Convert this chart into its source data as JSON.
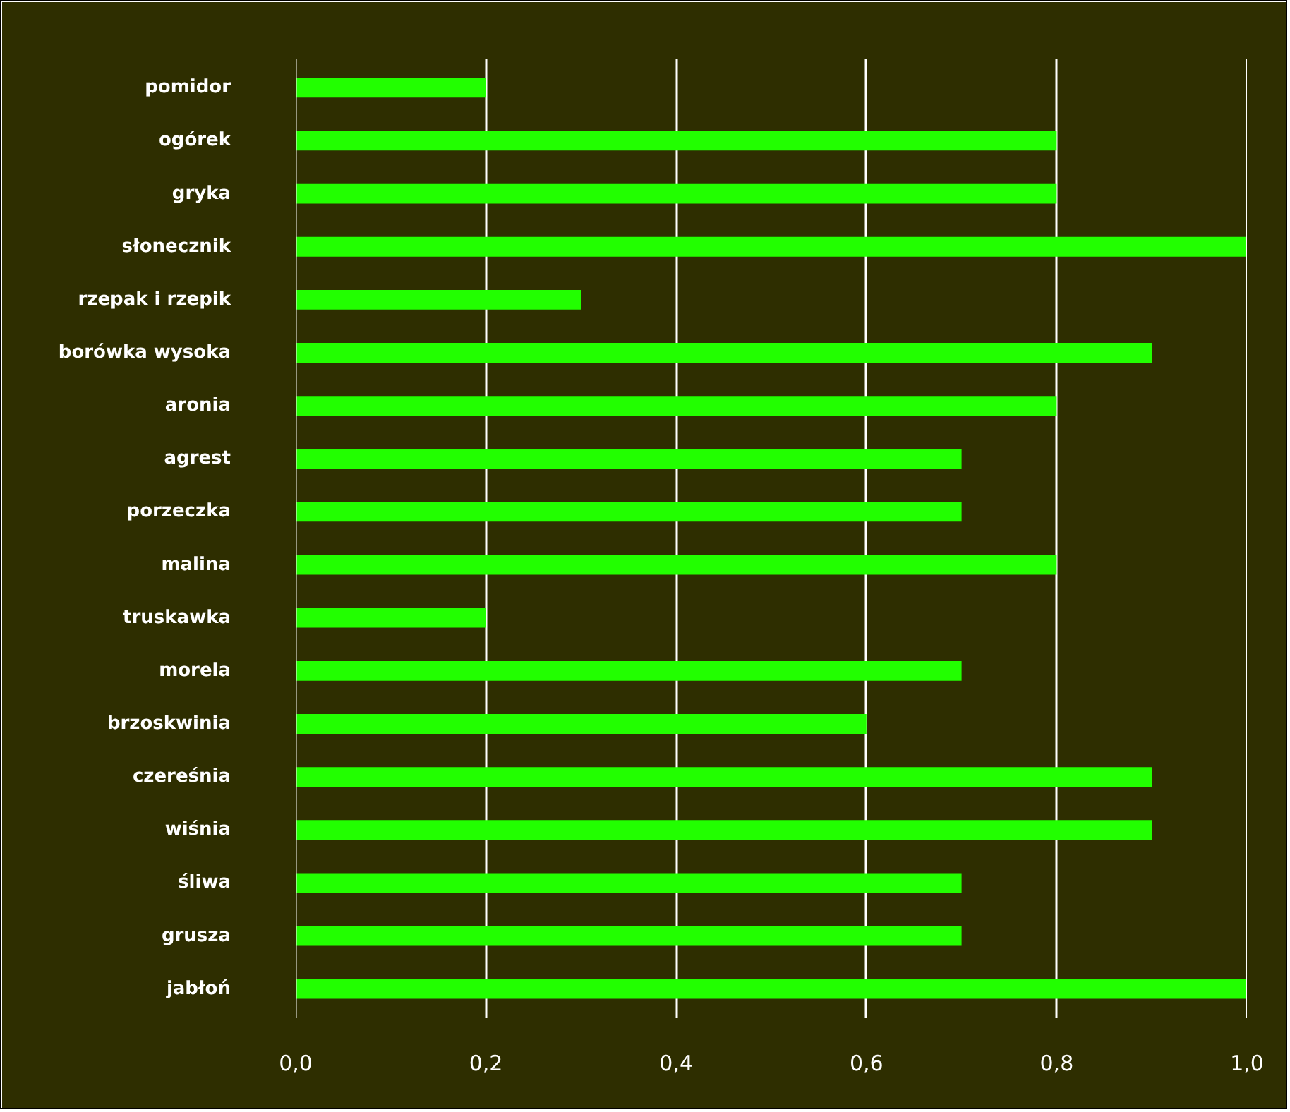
{
  "chart_data": {
    "type": "bar",
    "orientation": "horizontal",
    "categories": [
      "pomidor",
      "ogórek",
      "gryka",
      "słonecznik",
      "rzepak i rzepik",
      "borówka wysoka",
      "aronia",
      "agrest",
      "porzeczka",
      "malina",
      "truskawka",
      "morela",
      "brzoskwinia",
      "czereśnia",
      "wiśnia",
      "śliwa",
      "grusza",
      "jabłoń"
    ],
    "values": [
      0.2,
      0.8,
      0.8,
      1.0,
      0.3,
      0.9,
      0.8,
      0.7,
      0.7,
      0.8,
      0.2,
      0.7,
      0.6,
      0.9,
      0.9,
      0.7,
      0.7,
      1.0
    ],
    "color": "#22ff00",
    "xlim": [
      0,
      1
    ],
    "xticks": [
      {
        "value": 0,
        "label": "0,0"
      },
      {
        "value": 0.2,
        "label": "0,2"
      },
      {
        "value": 0.4,
        "label": "0,4"
      },
      {
        "value": 0.6,
        "label": "0,6"
      },
      {
        "value": 0.8,
        "label": "0,8"
      },
      {
        "value": 1.0,
        "label": "1,0"
      }
    ],
    "grid": "x"
  }
}
